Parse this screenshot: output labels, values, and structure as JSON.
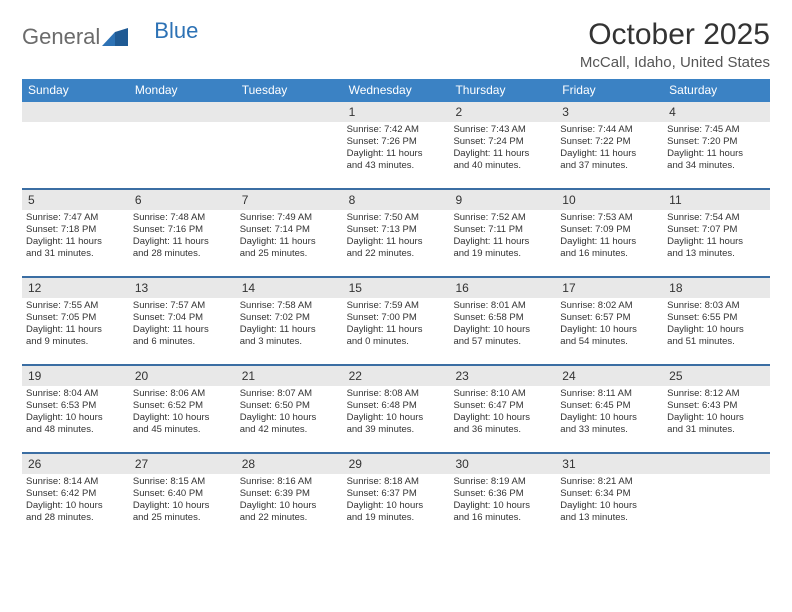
{
  "logo": {
    "general": "General",
    "blue": "Blue"
  },
  "title": "October 2025",
  "location": "McCall, Idaho, United States",
  "dow": [
    "Sunday",
    "Monday",
    "Tuesday",
    "Wednesday",
    "Thursday",
    "Friday",
    "Saturday"
  ],
  "colors": {
    "header_bar": "#3b82c4",
    "week_border": "#3b6ea3",
    "daynum_bg": "#e8e8e8",
    "logo_general": "#6b6b6b",
    "logo_blue": "#2d72b5"
  },
  "weeks": [
    [
      {
        "n": "",
        "sr": "",
        "ss": "",
        "dl1": "",
        "dl2": ""
      },
      {
        "n": "",
        "sr": "",
        "ss": "",
        "dl1": "",
        "dl2": ""
      },
      {
        "n": "",
        "sr": "",
        "ss": "",
        "dl1": "",
        "dl2": ""
      },
      {
        "n": "1",
        "sr": "Sunrise: 7:42 AM",
        "ss": "Sunset: 7:26 PM",
        "dl1": "Daylight: 11 hours",
        "dl2": "and 43 minutes."
      },
      {
        "n": "2",
        "sr": "Sunrise: 7:43 AM",
        "ss": "Sunset: 7:24 PM",
        "dl1": "Daylight: 11 hours",
        "dl2": "and 40 minutes."
      },
      {
        "n": "3",
        "sr": "Sunrise: 7:44 AM",
        "ss": "Sunset: 7:22 PM",
        "dl1": "Daylight: 11 hours",
        "dl2": "and 37 minutes."
      },
      {
        "n": "4",
        "sr": "Sunrise: 7:45 AM",
        "ss": "Sunset: 7:20 PM",
        "dl1": "Daylight: 11 hours",
        "dl2": "and 34 minutes."
      }
    ],
    [
      {
        "n": "5",
        "sr": "Sunrise: 7:47 AM",
        "ss": "Sunset: 7:18 PM",
        "dl1": "Daylight: 11 hours",
        "dl2": "and 31 minutes."
      },
      {
        "n": "6",
        "sr": "Sunrise: 7:48 AM",
        "ss": "Sunset: 7:16 PM",
        "dl1": "Daylight: 11 hours",
        "dl2": "and 28 minutes."
      },
      {
        "n": "7",
        "sr": "Sunrise: 7:49 AM",
        "ss": "Sunset: 7:14 PM",
        "dl1": "Daylight: 11 hours",
        "dl2": "and 25 minutes."
      },
      {
        "n": "8",
        "sr": "Sunrise: 7:50 AM",
        "ss": "Sunset: 7:13 PM",
        "dl1": "Daylight: 11 hours",
        "dl2": "and 22 minutes."
      },
      {
        "n": "9",
        "sr": "Sunrise: 7:52 AM",
        "ss": "Sunset: 7:11 PM",
        "dl1": "Daylight: 11 hours",
        "dl2": "and 19 minutes."
      },
      {
        "n": "10",
        "sr": "Sunrise: 7:53 AM",
        "ss": "Sunset: 7:09 PM",
        "dl1": "Daylight: 11 hours",
        "dl2": "and 16 minutes."
      },
      {
        "n": "11",
        "sr": "Sunrise: 7:54 AM",
        "ss": "Sunset: 7:07 PM",
        "dl1": "Daylight: 11 hours",
        "dl2": "and 13 minutes."
      }
    ],
    [
      {
        "n": "12",
        "sr": "Sunrise: 7:55 AM",
        "ss": "Sunset: 7:05 PM",
        "dl1": "Daylight: 11 hours",
        "dl2": "and 9 minutes."
      },
      {
        "n": "13",
        "sr": "Sunrise: 7:57 AM",
        "ss": "Sunset: 7:04 PM",
        "dl1": "Daylight: 11 hours",
        "dl2": "and 6 minutes."
      },
      {
        "n": "14",
        "sr": "Sunrise: 7:58 AM",
        "ss": "Sunset: 7:02 PM",
        "dl1": "Daylight: 11 hours",
        "dl2": "and 3 minutes."
      },
      {
        "n": "15",
        "sr": "Sunrise: 7:59 AM",
        "ss": "Sunset: 7:00 PM",
        "dl1": "Daylight: 11 hours",
        "dl2": "and 0 minutes."
      },
      {
        "n": "16",
        "sr": "Sunrise: 8:01 AM",
        "ss": "Sunset: 6:58 PM",
        "dl1": "Daylight: 10 hours",
        "dl2": "and 57 minutes."
      },
      {
        "n": "17",
        "sr": "Sunrise: 8:02 AM",
        "ss": "Sunset: 6:57 PM",
        "dl1": "Daylight: 10 hours",
        "dl2": "and 54 minutes."
      },
      {
        "n": "18",
        "sr": "Sunrise: 8:03 AM",
        "ss": "Sunset: 6:55 PM",
        "dl1": "Daylight: 10 hours",
        "dl2": "and 51 minutes."
      }
    ],
    [
      {
        "n": "19",
        "sr": "Sunrise: 8:04 AM",
        "ss": "Sunset: 6:53 PM",
        "dl1": "Daylight: 10 hours",
        "dl2": "and 48 minutes."
      },
      {
        "n": "20",
        "sr": "Sunrise: 8:06 AM",
        "ss": "Sunset: 6:52 PM",
        "dl1": "Daylight: 10 hours",
        "dl2": "and 45 minutes."
      },
      {
        "n": "21",
        "sr": "Sunrise: 8:07 AM",
        "ss": "Sunset: 6:50 PM",
        "dl1": "Daylight: 10 hours",
        "dl2": "and 42 minutes."
      },
      {
        "n": "22",
        "sr": "Sunrise: 8:08 AM",
        "ss": "Sunset: 6:48 PM",
        "dl1": "Daylight: 10 hours",
        "dl2": "and 39 minutes."
      },
      {
        "n": "23",
        "sr": "Sunrise: 8:10 AM",
        "ss": "Sunset: 6:47 PM",
        "dl1": "Daylight: 10 hours",
        "dl2": "and 36 minutes."
      },
      {
        "n": "24",
        "sr": "Sunrise: 8:11 AM",
        "ss": "Sunset: 6:45 PM",
        "dl1": "Daylight: 10 hours",
        "dl2": "and 33 minutes."
      },
      {
        "n": "25",
        "sr": "Sunrise: 8:12 AM",
        "ss": "Sunset: 6:43 PM",
        "dl1": "Daylight: 10 hours",
        "dl2": "and 31 minutes."
      }
    ],
    [
      {
        "n": "26",
        "sr": "Sunrise: 8:14 AM",
        "ss": "Sunset: 6:42 PM",
        "dl1": "Daylight: 10 hours",
        "dl2": "and 28 minutes."
      },
      {
        "n": "27",
        "sr": "Sunrise: 8:15 AM",
        "ss": "Sunset: 6:40 PM",
        "dl1": "Daylight: 10 hours",
        "dl2": "and 25 minutes."
      },
      {
        "n": "28",
        "sr": "Sunrise: 8:16 AM",
        "ss": "Sunset: 6:39 PM",
        "dl1": "Daylight: 10 hours",
        "dl2": "and 22 minutes."
      },
      {
        "n": "29",
        "sr": "Sunrise: 8:18 AM",
        "ss": "Sunset: 6:37 PM",
        "dl1": "Daylight: 10 hours",
        "dl2": "and 19 minutes."
      },
      {
        "n": "30",
        "sr": "Sunrise: 8:19 AM",
        "ss": "Sunset: 6:36 PM",
        "dl1": "Daylight: 10 hours",
        "dl2": "and 16 minutes."
      },
      {
        "n": "31",
        "sr": "Sunrise: 8:21 AM",
        "ss": "Sunset: 6:34 PM",
        "dl1": "Daylight: 10 hours",
        "dl2": "and 13 minutes."
      },
      {
        "n": "",
        "sr": "",
        "ss": "",
        "dl1": "",
        "dl2": ""
      }
    ]
  ]
}
